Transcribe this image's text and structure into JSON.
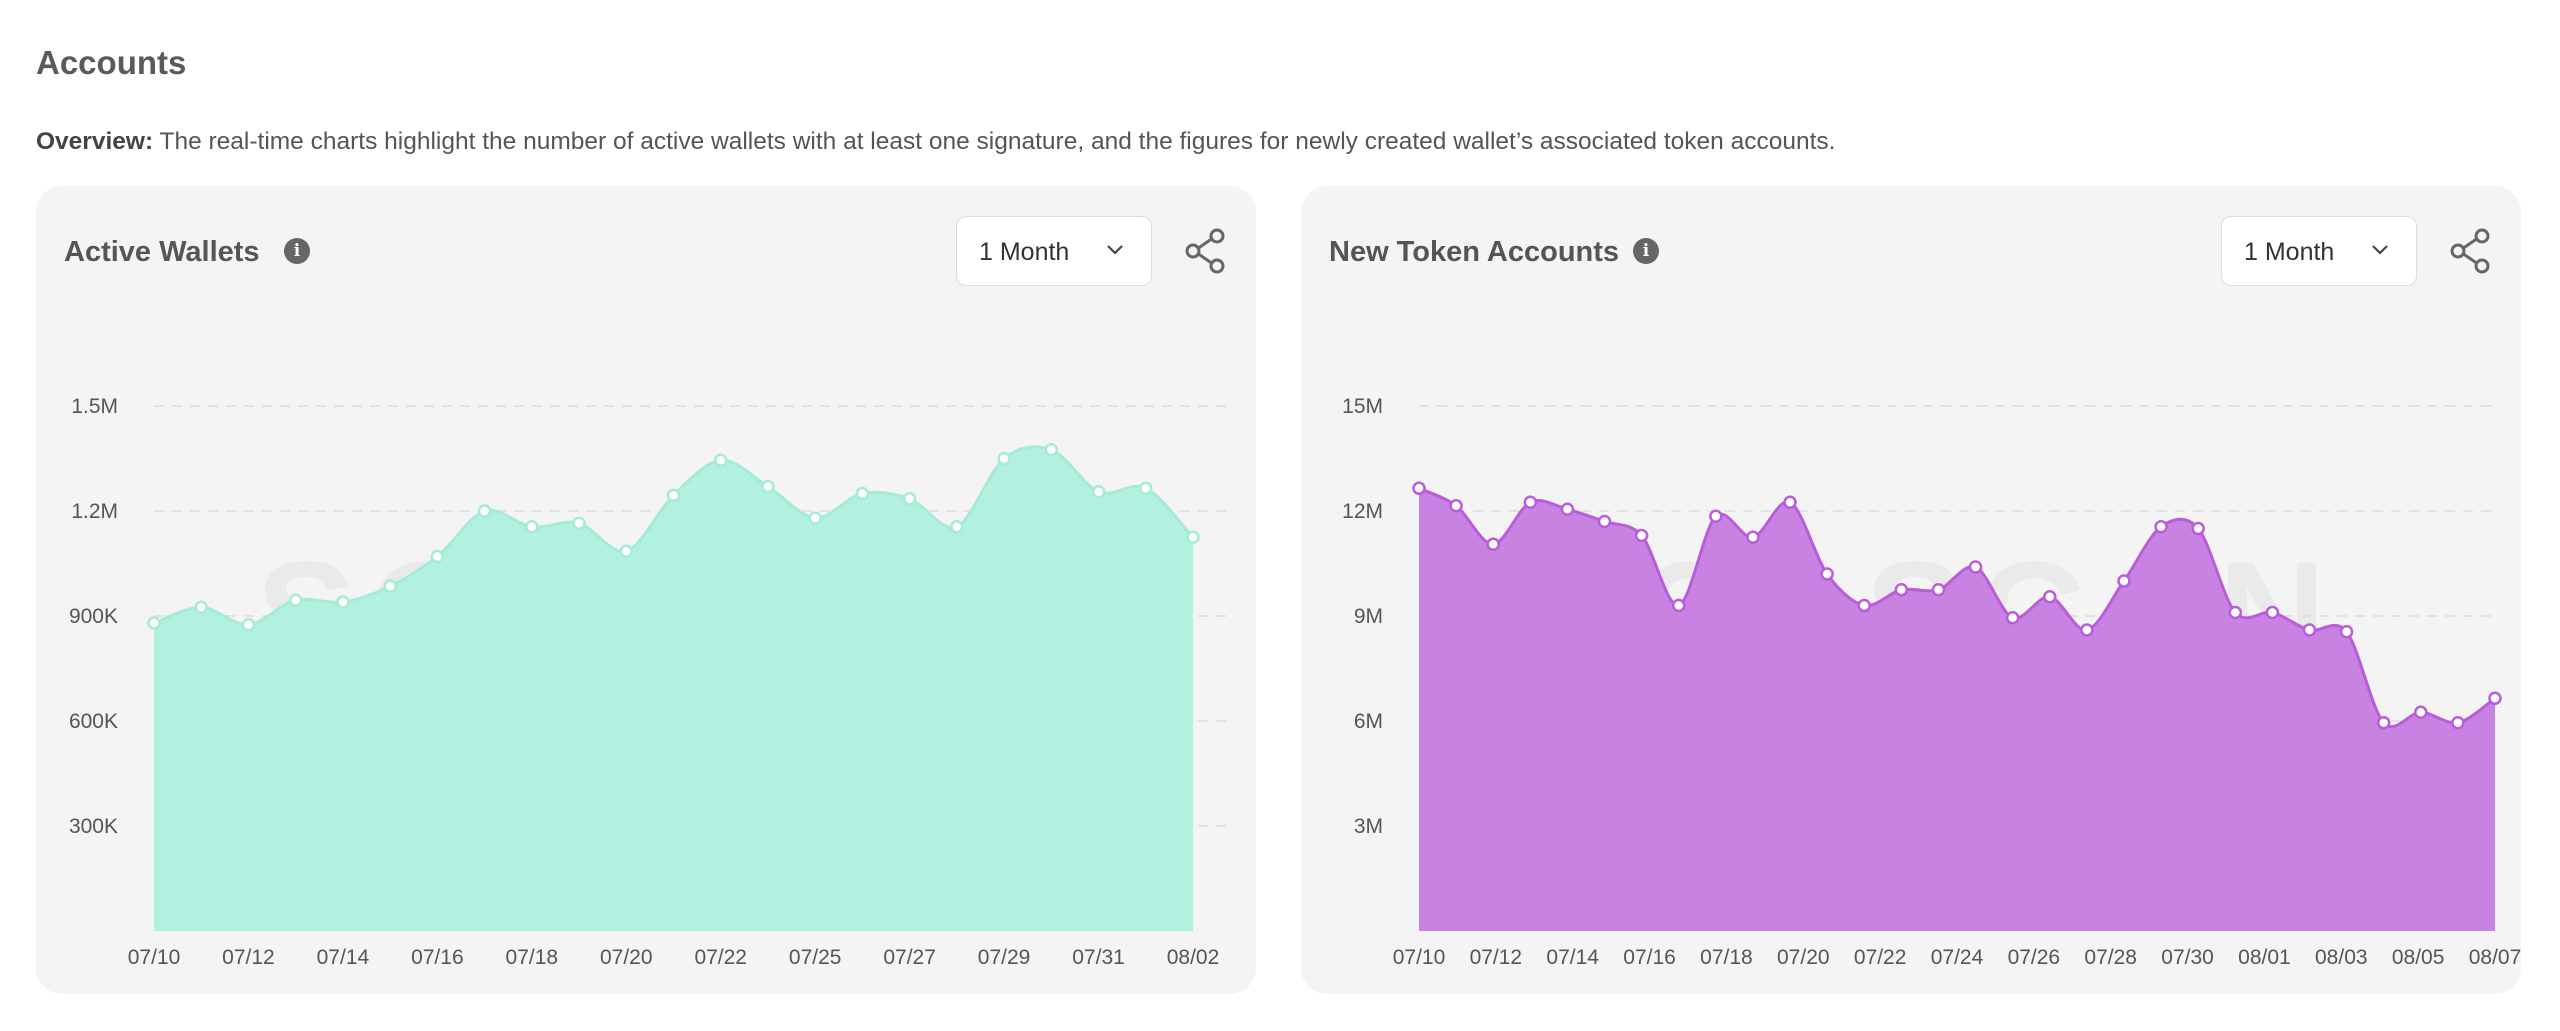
{
  "page": {
    "title": "Accounts",
    "overview_label": "Overview:",
    "overview_text": " The real-time charts highlight the number of active wallets with at least one signature, and the figures for newly created wallet’s associated token accounts."
  },
  "cards": [
    {
      "title": "Active Wallets",
      "info_icon": "i",
      "range_select": "1 Month",
      "watermark": "SOLSCAN"
    },
    {
      "title": "New Token Accounts",
      "info_icon": "i",
      "range_select": "1 Month",
      "watermark": "SOLSCAN"
    }
  ],
  "chart_data": [
    {
      "type": "area",
      "title": "Active Wallets",
      "color": "#b2f0df",
      "stroke": "#a4ecd7",
      "ylim": [
        0,
        1500000
      ],
      "y_ticks": [
        300000,
        600000,
        900000,
        1200000,
        1500000
      ],
      "y_tick_labels": [
        "300K",
        "600K",
        "900K",
        "1.2M",
        "1.5M"
      ],
      "grid": "dashed-horizontal",
      "x_tick_labels": [
        "07/10",
        "07/12",
        "07/14",
        "07/16",
        "07/18",
        "07/20",
        "07/22",
        "07/25",
        "07/27",
        "07/29",
        "07/31",
        "08/02"
      ],
      "values": [
        880000,
        925000,
        875000,
        945000,
        940000,
        985000,
        1070000,
        1200000,
        1155000,
        1165000,
        1085000,
        1245000,
        1345000,
        1270000,
        1180000,
        1250000,
        1235000,
        1155000,
        1350000,
        1375000,
        1255000,
        1265000,
        1125000
      ]
    },
    {
      "type": "area",
      "title": "New Token Accounts",
      "color": "#c882e2",
      "stroke": "#b95ddb",
      "ylim": [
        0,
        15000000
      ],
      "y_ticks": [
        3000000,
        6000000,
        9000000,
        12000000,
        15000000
      ],
      "y_tick_labels": [
        "3M",
        "6M",
        "9M",
        "12M",
        "15M"
      ],
      "grid": "dashed-horizontal",
      "x_tick_labels": [
        "07/10",
        "07/12",
        "07/14",
        "07/16",
        "07/18",
        "07/20",
        "07/22",
        "07/24",
        "07/26",
        "07/28",
        "07/30",
        "08/01",
        "08/03",
        "08/05",
        "08/07"
      ],
      "values": [
        12650000,
        12150000,
        11050000,
        12250000,
        12050000,
        11700000,
        11300000,
        9300000,
        11850000,
        11250000,
        12250000,
        10200000,
        9300000,
        9750000,
        9750000,
        10400000,
        8950000,
        9550000,
        8600000,
        10000000,
        11550000,
        11500000,
        9100000,
        9100000,
        8600000,
        8550000,
        5950000,
        6250000,
        5950000,
        6650000
      ]
    }
  ]
}
